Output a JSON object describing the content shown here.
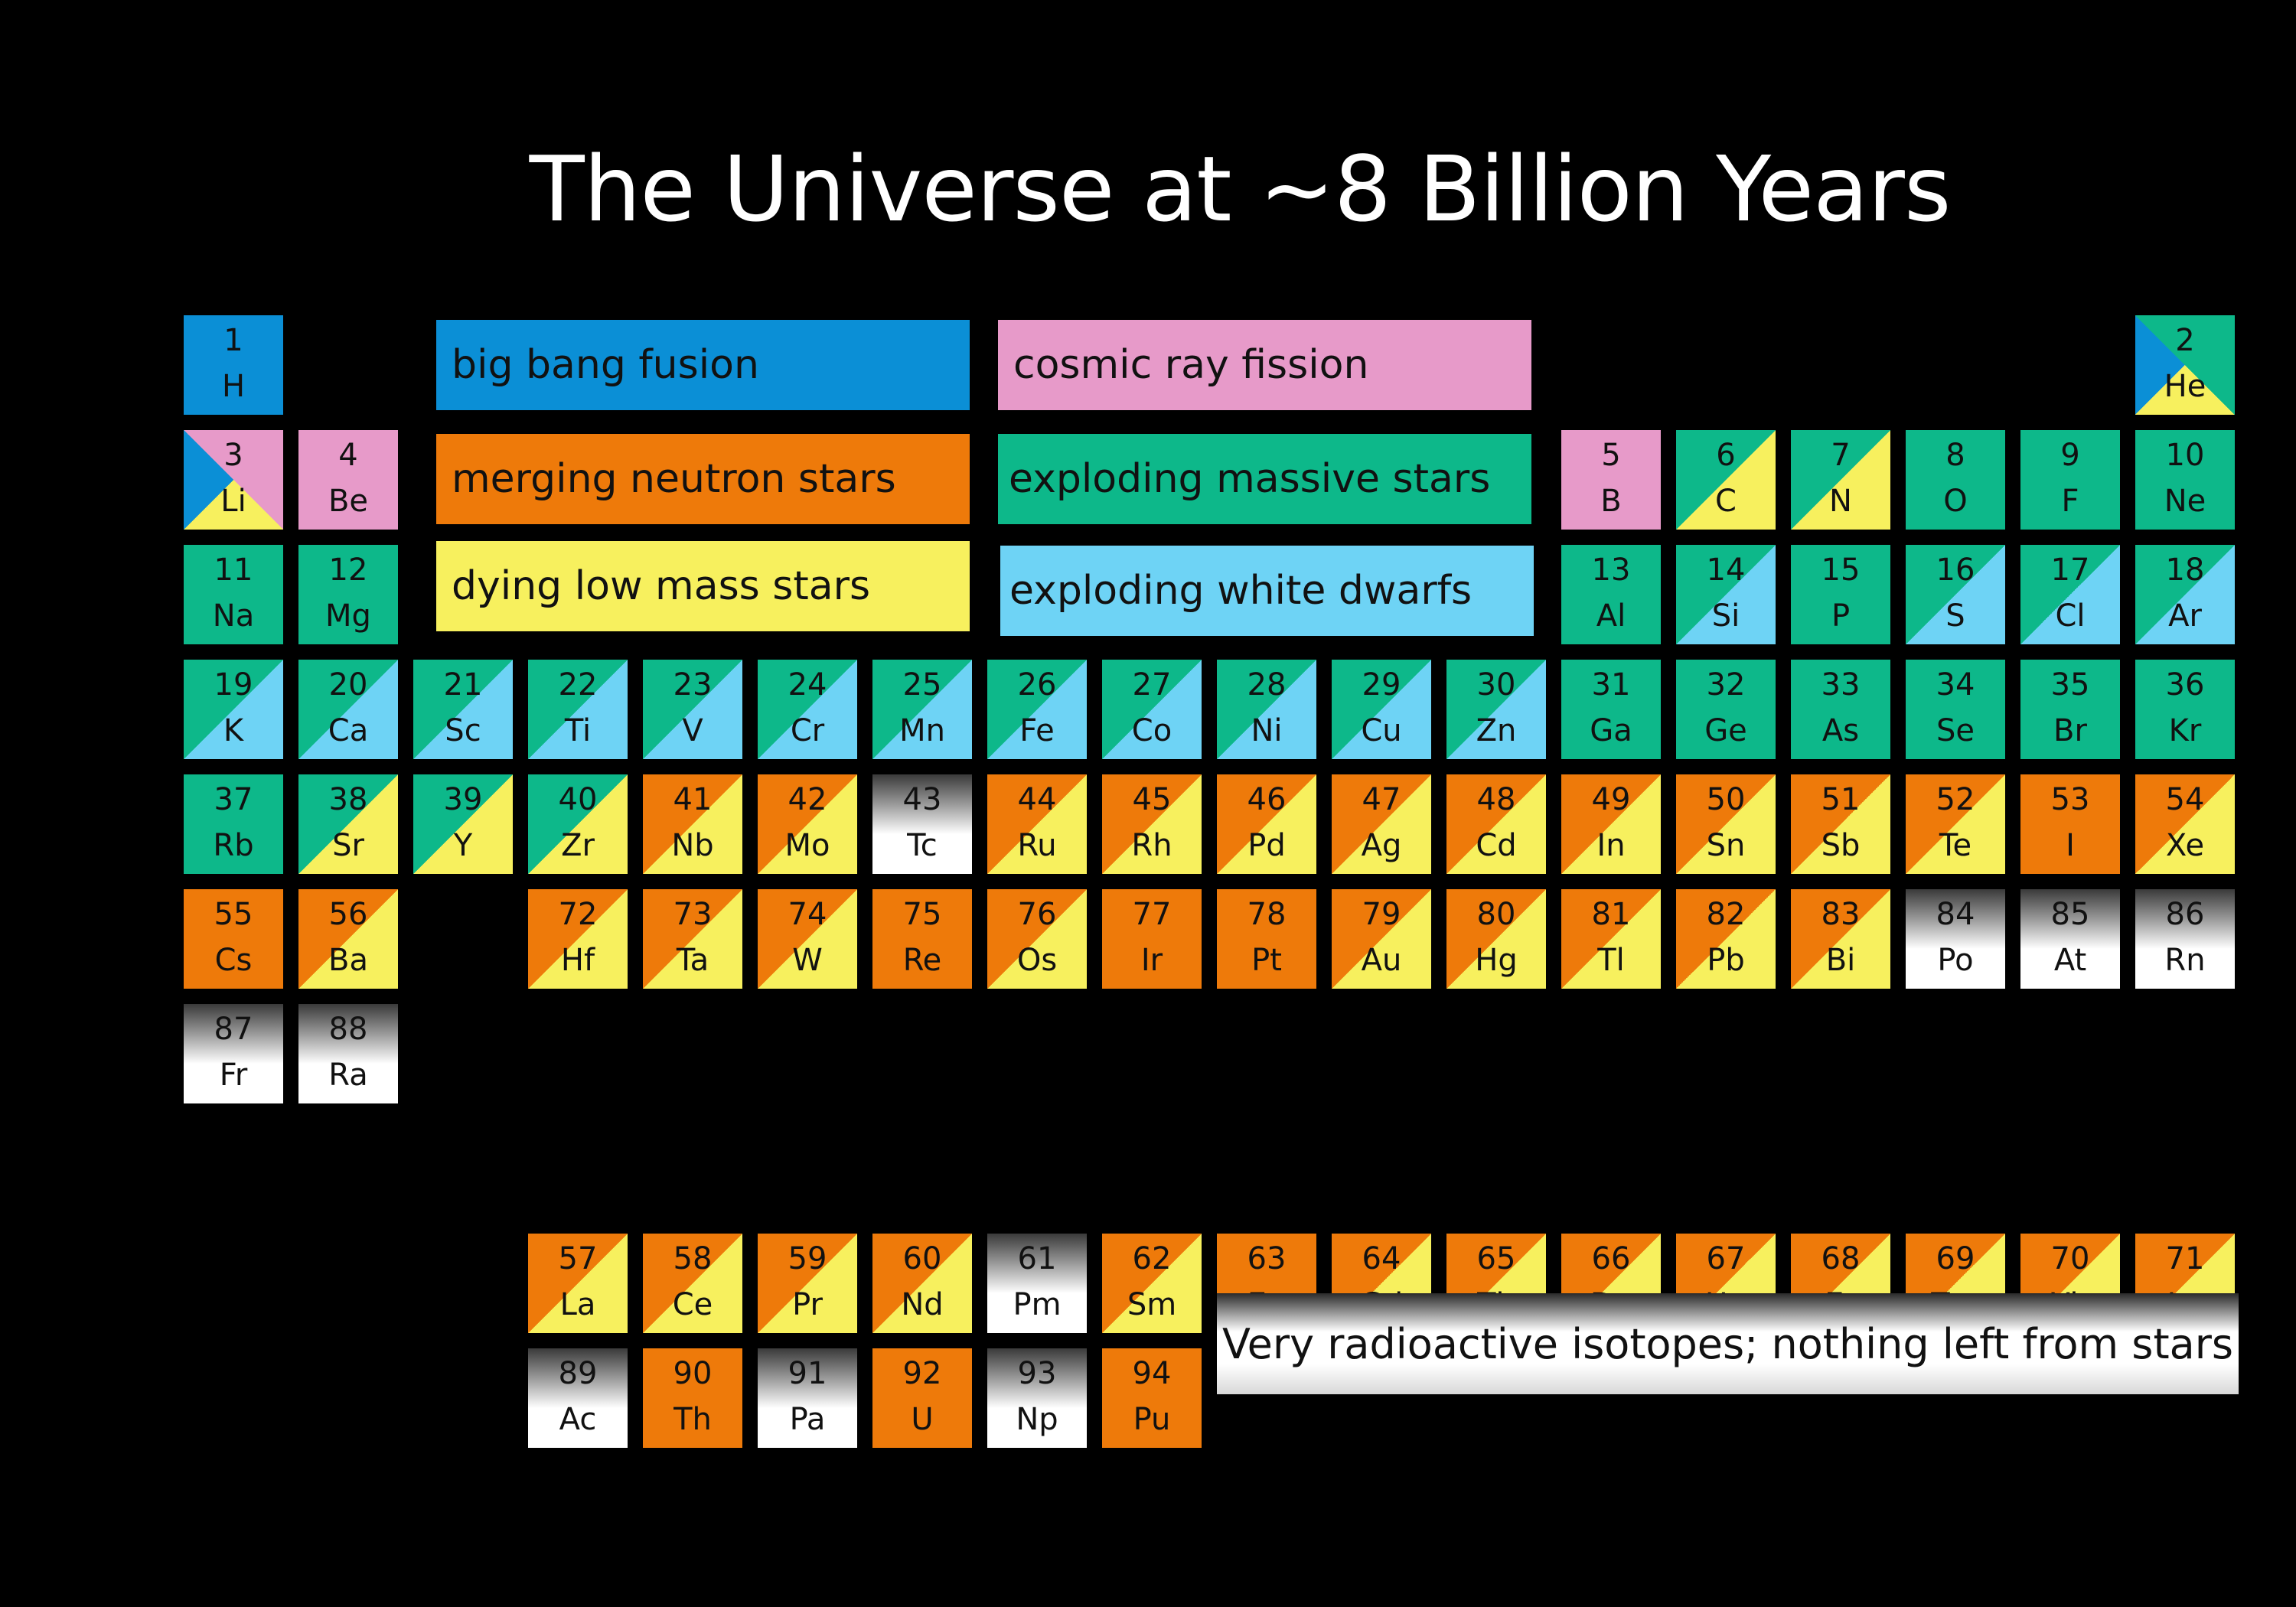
{
  "title": "The Universe at ~8 Billion Years",
  "colors": {
    "bigbang": "#0b8fd6",
    "cosmic": "#e79ac9",
    "neutron": "#ee7a0a",
    "massive": "#0db88a",
    "lowmass": "#f7f05e",
    "whitedwarf": "#6ed3f5",
    "radioactive": "grey-gradient"
  },
  "legend": [
    {
      "key": "bigbang",
      "label": "big bang fusion"
    },
    {
      "key": "cosmic",
      "label": "cosmic ray fission"
    },
    {
      "key": "neutron",
      "label": "merging neutron stars"
    },
    {
      "key": "massive",
      "label": "exploding massive stars"
    },
    {
      "key": "lowmass",
      "label": "dying low mass stars"
    },
    {
      "key": "whitedwarf",
      "label": "exploding white dwarfs"
    }
  ],
  "radioactive_note": "Very radioactive isotopes; nothing left from stars",
  "elements": [
    {
      "n": "1",
      "s": "H",
      "r": 1,
      "c": 1,
      "sources": [
        "bigbang"
      ]
    },
    {
      "n": "2",
      "s": "He",
      "r": 1,
      "c": 18,
      "sources": [
        "bigbang",
        "massive",
        "lowmass"
      ]
    },
    {
      "n": "3",
      "s": "Li",
      "r": 2,
      "c": 1,
      "sources": [
        "bigbang",
        "cosmic",
        "lowmass"
      ]
    },
    {
      "n": "4",
      "s": "Be",
      "r": 2,
      "c": 2,
      "sources": [
        "cosmic"
      ]
    },
    {
      "n": "5",
      "s": "B",
      "r": 2,
      "c": 13,
      "sources": [
        "cosmic"
      ]
    },
    {
      "n": "6",
      "s": "C",
      "r": 2,
      "c": 14,
      "sources": [
        "massive",
        "lowmass"
      ]
    },
    {
      "n": "7",
      "s": "N",
      "r": 2,
      "c": 15,
      "sources": [
        "massive",
        "lowmass"
      ]
    },
    {
      "n": "8",
      "s": "O",
      "r": 2,
      "c": 16,
      "sources": [
        "massive"
      ]
    },
    {
      "n": "9",
      "s": "F",
      "r": 2,
      "c": 17,
      "sources": [
        "massive"
      ]
    },
    {
      "n": "10",
      "s": "Ne",
      "r": 2,
      "c": 18,
      "sources": [
        "massive"
      ]
    },
    {
      "n": "11",
      "s": "Na",
      "r": 3,
      "c": 1,
      "sources": [
        "massive"
      ]
    },
    {
      "n": "12",
      "s": "Mg",
      "r": 3,
      "c": 2,
      "sources": [
        "massive"
      ]
    },
    {
      "n": "13",
      "s": "Al",
      "r": 3,
      "c": 13,
      "sources": [
        "massive"
      ]
    },
    {
      "n": "14",
      "s": "Si",
      "r": 3,
      "c": 14,
      "sources": [
        "massive",
        "whitedwarf"
      ]
    },
    {
      "n": "15",
      "s": "P",
      "r": 3,
      "c": 15,
      "sources": [
        "massive"
      ]
    },
    {
      "n": "16",
      "s": "S",
      "r": 3,
      "c": 16,
      "sources": [
        "massive",
        "whitedwarf"
      ]
    },
    {
      "n": "17",
      "s": "Cl",
      "r": 3,
      "c": 17,
      "sources": [
        "massive",
        "whitedwarf"
      ]
    },
    {
      "n": "18",
      "s": "Ar",
      "r": 3,
      "c": 18,
      "sources": [
        "massive",
        "whitedwarf"
      ]
    },
    {
      "n": "19",
      "s": "K",
      "r": 4,
      "c": 1,
      "sources": [
        "massive",
        "whitedwarf"
      ]
    },
    {
      "n": "20",
      "s": "Ca",
      "r": 4,
      "c": 2,
      "sources": [
        "massive",
        "whitedwarf"
      ]
    },
    {
      "n": "21",
      "s": "Sc",
      "r": 4,
      "c": 3,
      "sources": [
        "massive",
        "whitedwarf"
      ]
    },
    {
      "n": "22",
      "s": "Ti",
      "r": 4,
      "c": 4,
      "sources": [
        "massive",
        "whitedwarf"
      ]
    },
    {
      "n": "23",
      "s": "V",
      "r": 4,
      "c": 5,
      "sources": [
        "massive",
        "whitedwarf"
      ]
    },
    {
      "n": "24",
      "s": "Cr",
      "r": 4,
      "c": 6,
      "sources": [
        "massive",
        "whitedwarf"
      ]
    },
    {
      "n": "25",
      "s": "Mn",
      "r": 4,
      "c": 7,
      "sources": [
        "massive",
        "whitedwarf"
      ]
    },
    {
      "n": "26",
      "s": "Fe",
      "r": 4,
      "c": 8,
      "sources": [
        "massive",
        "whitedwarf"
      ]
    },
    {
      "n": "27",
      "s": "Co",
      "r": 4,
      "c": 9,
      "sources": [
        "massive",
        "whitedwarf"
      ]
    },
    {
      "n": "28",
      "s": "Ni",
      "r": 4,
      "c": 10,
      "sources": [
        "massive",
        "whitedwarf"
      ]
    },
    {
      "n": "29",
      "s": "Cu",
      "r": 4,
      "c": 11,
      "sources": [
        "massive",
        "whitedwarf"
      ]
    },
    {
      "n": "30",
      "s": "Zn",
      "r": 4,
      "c": 12,
      "sources": [
        "massive",
        "whitedwarf"
      ]
    },
    {
      "n": "31",
      "s": "Ga",
      "r": 4,
      "c": 13,
      "sources": [
        "massive"
      ]
    },
    {
      "n": "32",
      "s": "Ge",
      "r": 4,
      "c": 14,
      "sources": [
        "massive"
      ]
    },
    {
      "n": "33",
      "s": "As",
      "r": 4,
      "c": 15,
      "sources": [
        "massive"
      ]
    },
    {
      "n": "34",
      "s": "Se",
      "r": 4,
      "c": 16,
      "sources": [
        "massive"
      ]
    },
    {
      "n": "35",
      "s": "Br",
      "r": 4,
      "c": 17,
      "sources": [
        "massive"
      ]
    },
    {
      "n": "36",
      "s": "Kr",
      "r": 4,
      "c": 18,
      "sources": [
        "massive"
      ]
    },
    {
      "n": "37",
      "s": "Rb",
      "r": 5,
      "c": 1,
      "sources": [
        "massive"
      ]
    },
    {
      "n": "38",
      "s": "Sr",
      "r": 5,
      "c": 2,
      "sources": [
        "massive",
        "lowmass"
      ]
    },
    {
      "n": "39",
      "s": "Y",
      "r": 5,
      "c": 3,
      "sources": [
        "massive",
        "lowmass"
      ]
    },
    {
      "n": "40",
      "s": "Zr",
      "r": 5,
      "c": 4,
      "sources": [
        "massive",
        "lowmass"
      ]
    },
    {
      "n": "41",
      "s": "Nb",
      "r": 5,
      "c": 5,
      "sources": [
        "neutron",
        "lowmass"
      ]
    },
    {
      "n": "42",
      "s": "Mo",
      "r": 5,
      "c": 6,
      "sources": [
        "neutron",
        "lowmass"
      ]
    },
    {
      "n": "43",
      "s": "Tc",
      "r": 5,
      "c": 7,
      "sources": [
        "radioactive"
      ]
    },
    {
      "n": "44",
      "s": "Ru",
      "r": 5,
      "c": 8,
      "sources": [
        "neutron",
        "lowmass"
      ]
    },
    {
      "n": "45",
      "s": "Rh",
      "r": 5,
      "c": 9,
      "sources": [
        "neutron",
        "lowmass"
      ]
    },
    {
      "n": "46",
      "s": "Pd",
      "r": 5,
      "c": 10,
      "sources": [
        "neutron",
        "lowmass"
      ]
    },
    {
      "n": "47",
      "s": "Ag",
      "r": 5,
      "c": 11,
      "sources": [
        "neutron",
        "lowmass"
      ]
    },
    {
      "n": "48",
      "s": "Cd",
      "r": 5,
      "c": 12,
      "sources": [
        "neutron",
        "lowmass"
      ]
    },
    {
      "n": "49",
      "s": "In",
      "r": 5,
      "c": 13,
      "sources": [
        "neutron",
        "lowmass"
      ]
    },
    {
      "n": "50",
      "s": "Sn",
      "r": 5,
      "c": 14,
      "sources": [
        "neutron",
        "lowmass"
      ]
    },
    {
      "n": "51",
      "s": "Sb",
      "r": 5,
      "c": 15,
      "sources": [
        "neutron",
        "lowmass"
      ]
    },
    {
      "n": "52",
      "s": "Te",
      "r": 5,
      "c": 16,
      "sources": [
        "neutron",
        "lowmass"
      ]
    },
    {
      "n": "53",
      "s": "I",
      "r": 5,
      "c": 17,
      "sources": [
        "neutron"
      ]
    },
    {
      "n": "54",
      "s": "Xe",
      "r": 5,
      "c": 18,
      "sources": [
        "neutron",
        "lowmass"
      ]
    },
    {
      "n": "55",
      "s": "Cs",
      "r": 6,
      "c": 1,
      "sources": [
        "neutron"
      ]
    },
    {
      "n": "56",
      "s": "Ba",
      "r": 6,
      "c": 2,
      "sources": [
        "neutron",
        "lowmass"
      ]
    },
    {
      "n": "72",
      "s": "Hf",
      "r": 6,
      "c": 4,
      "sources": [
        "neutron",
        "lowmass"
      ]
    },
    {
      "n": "73",
      "s": "Ta",
      "r": 6,
      "c": 5,
      "sources": [
        "neutron",
        "lowmass"
      ]
    },
    {
      "n": "74",
      "s": "W",
      "r": 6,
      "c": 6,
      "sources": [
        "neutron",
        "lowmass"
      ]
    },
    {
      "n": "75",
      "s": "Re",
      "r": 6,
      "c": 7,
      "sources": [
        "neutron"
      ]
    },
    {
      "n": "76",
      "s": "Os",
      "r": 6,
      "c": 8,
      "sources": [
        "neutron",
        "lowmass"
      ]
    },
    {
      "n": "77",
      "s": "Ir",
      "r": 6,
      "c": 9,
      "sources": [
        "neutron"
      ]
    },
    {
      "n": "78",
      "s": "Pt",
      "r": 6,
      "c": 10,
      "sources": [
        "neutron"
      ]
    },
    {
      "n": "79",
      "s": "Au",
      "r": 6,
      "c": 11,
      "sources": [
        "neutron",
        "lowmass"
      ]
    },
    {
      "n": "80",
      "s": "Hg",
      "r": 6,
      "c": 12,
      "sources": [
        "neutron",
        "lowmass"
      ]
    },
    {
      "n": "81",
      "s": "Tl",
      "r": 6,
      "c": 13,
      "sources": [
        "neutron",
        "lowmass"
      ]
    },
    {
      "n": "82",
      "s": "Pb",
      "r": 6,
      "c": 14,
      "sources": [
        "neutron",
        "lowmass"
      ]
    },
    {
      "n": "83",
      "s": "Bi",
      "r": 6,
      "c": 15,
      "sources": [
        "neutron",
        "lowmass"
      ]
    },
    {
      "n": "84",
      "s": "Po",
      "r": 6,
      "c": 16,
      "sources": [
        "radioactive"
      ]
    },
    {
      "n": "85",
      "s": "At",
      "r": 6,
      "c": 17,
      "sources": [
        "radioactive"
      ]
    },
    {
      "n": "86",
      "s": "Rn",
      "r": 6,
      "c": 18,
      "sources": [
        "radioactive"
      ]
    },
    {
      "n": "87",
      "s": "Fr",
      "r": 7,
      "c": 1,
      "sources": [
        "radioactive"
      ]
    },
    {
      "n": "88",
      "s": "Ra",
      "r": 7,
      "c": 2,
      "sources": [
        "radioactive"
      ]
    },
    {
      "n": "57",
      "s": "La",
      "r": 9,
      "c": 4,
      "sources": [
        "neutron",
        "lowmass"
      ]
    },
    {
      "n": "58",
      "s": "Ce",
      "r": 9,
      "c": 5,
      "sources": [
        "neutron",
        "lowmass"
      ]
    },
    {
      "n": "59",
      "s": "Pr",
      "r": 9,
      "c": 6,
      "sources": [
        "neutron",
        "lowmass"
      ]
    },
    {
      "n": "60",
      "s": "Nd",
      "r": 9,
      "c": 7,
      "sources": [
        "neutron",
        "lowmass"
      ]
    },
    {
      "n": "61",
      "s": "Pm",
      "r": 9,
      "c": 8,
      "sources": [
        "radioactive"
      ]
    },
    {
      "n": "62",
      "s": "Sm",
      "r": 9,
      "c": 9,
      "sources": [
        "neutron",
        "lowmass"
      ]
    },
    {
      "n": "63",
      "s": "Eu",
      "r": 9,
      "c": 10,
      "sources": [
        "neutron"
      ]
    },
    {
      "n": "64",
      "s": "Gd",
      "r": 9,
      "c": 11,
      "sources": [
        "neutron",
        "lowmass"
      ]
    },
    {
      "n": "65",
      "s": "Tb",
      "r": 9,
      "c": 12,
      "sources": [
        "neutron",
        "lowmass"
      ]
    },
    {
      "n": "66",
      "s": "Dy",
      "r": 9,
      "c": 13,
      "sources": [
        "neutron",
        "lowmass"
      ]
    },
    {
      "n": "67",
      "s": "Ho",
      "r": 9,
      "c": 14,
      "sources": [
        "neutron",
        "lowmass"
      ]
    },
    {
      "n": "68",
      "s": "Er",
      "r": 9,
      "c": 15,
      "sources": [
        "neutron",
        "lowmass"
      ]
    },
    {
      "n": "69",
      "s": "Tm",
      "r": 9,
      "c": 16,
      "sources": [
        "neutron",
        "lowmass"
      ]
    },
    {
      "n": "70",
      "s": "Yb",
      "r": 9,
      "c": 17,
      "sources": [
        "neutron",
        "lowmass"
      ]
    },
    {
      "n": "71",
      "s": "Lu",
      "r": 9,
      "c": 18,
      "sources": [
        "neutron",
        "lowmass"
      ]
    },
    {
      "n": "89",
      "s": "Ac",
      "r": 10,
      "c": 4,
      "sources": [
        "radioactive"
      ]
    },
    {
      "n": "90",
      "s": "Th",
      "r": 10,
      "c": 5,
      "sources": [
        "neutron"
      ]
    },
    {
      "n": "91",
      "s": "Pa",
      "r": 10,
      "c": 6,
      "sources": [
        "radioactive"
      ]
    },
    {
      "n": "92",
      "s": "U",
      "r": 10,
      "c": 7,
      "sources": [
        "neutron"
      ]
    },
    {
      "n": "93",
      "s": "Np",
      "r": 10,
      "c": 8,
      "sources": [
        "radioactive"
      ]
    },
    {
      "n": "94",
      "s": "Pu",
      "r": 10,
      "c": 9,
      "sources": [
        "neutron"
      ]
    }
  ]
}
